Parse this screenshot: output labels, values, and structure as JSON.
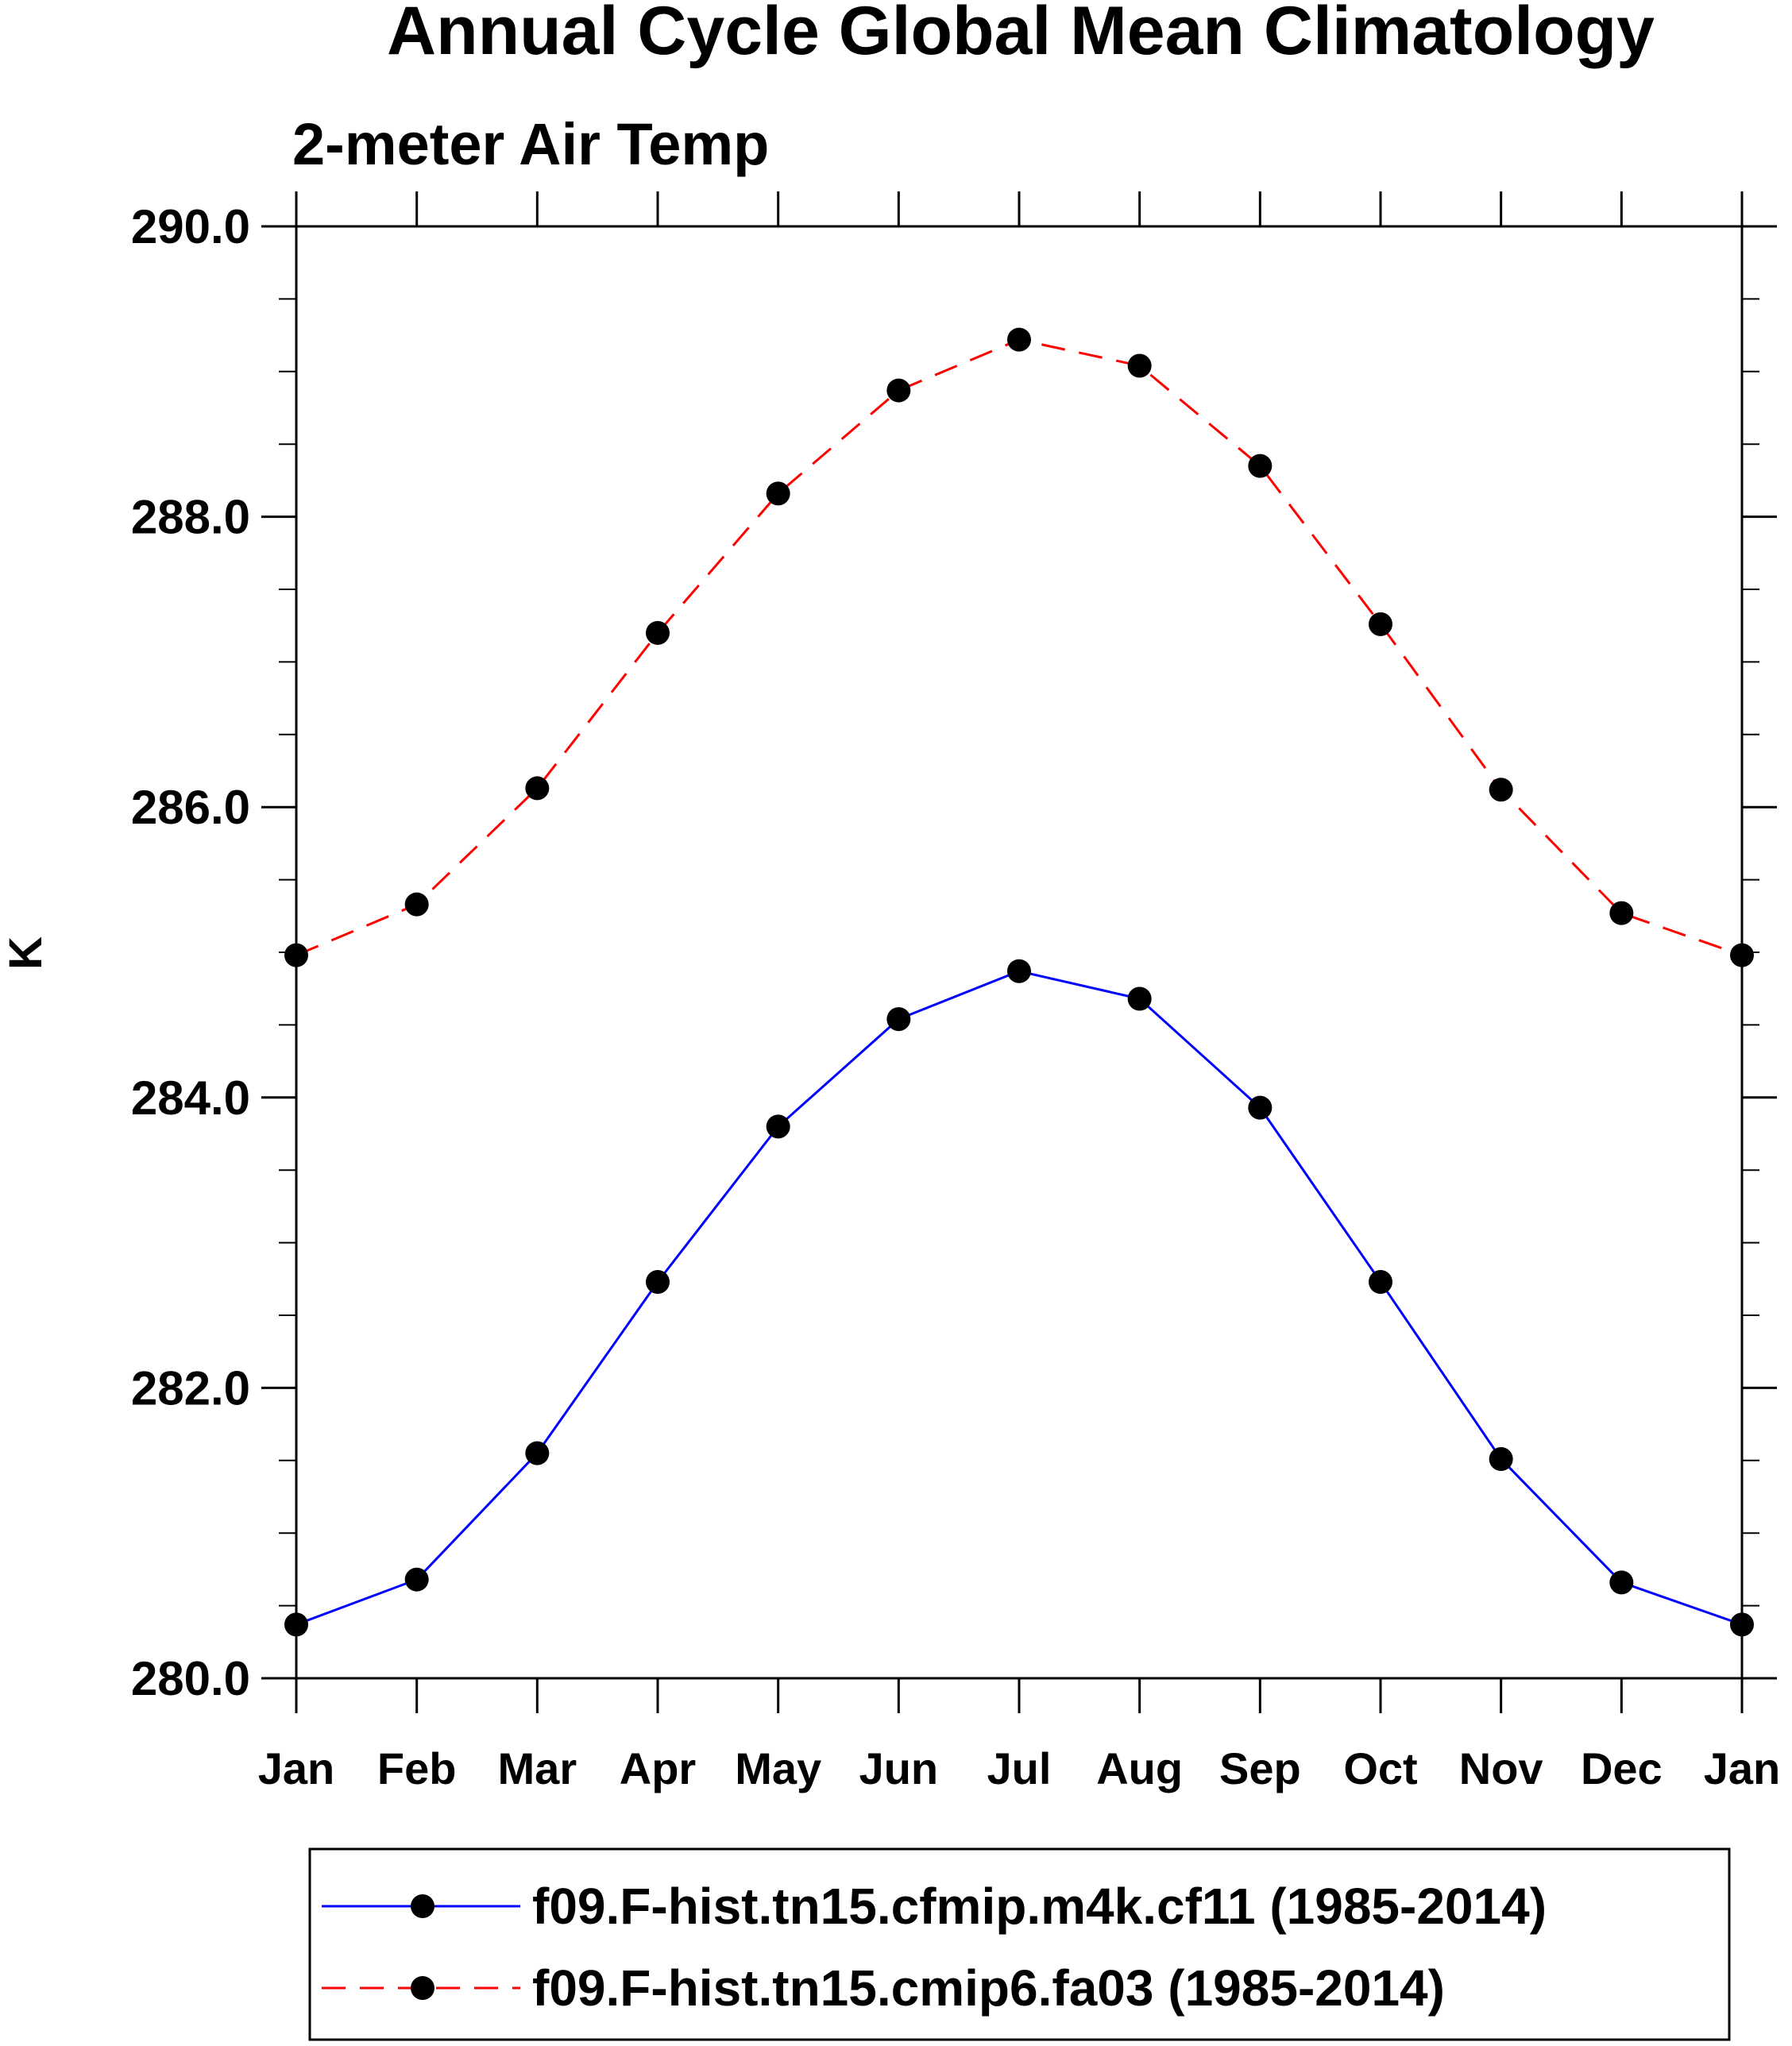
{
  "chart_data": {
    "type": "line",
    "title": "Annual Cycle Global Mean Climatology",
    "subtitle": "2-meter Air Temp",
    "xlabel": "",
    "ylabel": "K",
    "ylim": [
      280.0,
      290.0
    ],
    "yticks": [
      "280.0",
      "282.0",
      "284.0",
      "286.0",
      "288.0",
      "290.0"
    ],
    "categories": [
      "Jan",
      "Feb",
      "Mar",
      "Apr",
      "May",
      "Jun",
      "Jul",
      "Aug",
      "Sep",
      "Oct",
      "Nov",
      "Dec",
      "Jan"
    ],
    "series": [
      {
        "name": "f09.F-hist.tn15.cfmip.m4k.cf11 (1985-2014)",
        "color": "#0000ff",
        "style": "solid",
        "marker": "circle",
        "values": [
          280.37,
          280.68,
          281.55,
          282.73,
          283.8,
          284.54,
          284.87,
          284.68,
          283.93,
          282.73,
          281.51,
          280.66,
          280.37
        ]
      },
      {
        "name": "f09.F-hist.tn15.cmip6.fa03 (1985-2014)",
        "color": "#ff0000",
        "style": "dashed",
        "marker": "circle",
        "values": [
          284.98,
          285.33,
          286.13,
          287.2,
          288.16,
          288.87,
          289.22,
          289.04,
          288.35,
          287.26,
          286.12,
          285.27,
          284.98
        ]
      }
    ],
    "legend": "bottom",
    "grid": false
  }
}
